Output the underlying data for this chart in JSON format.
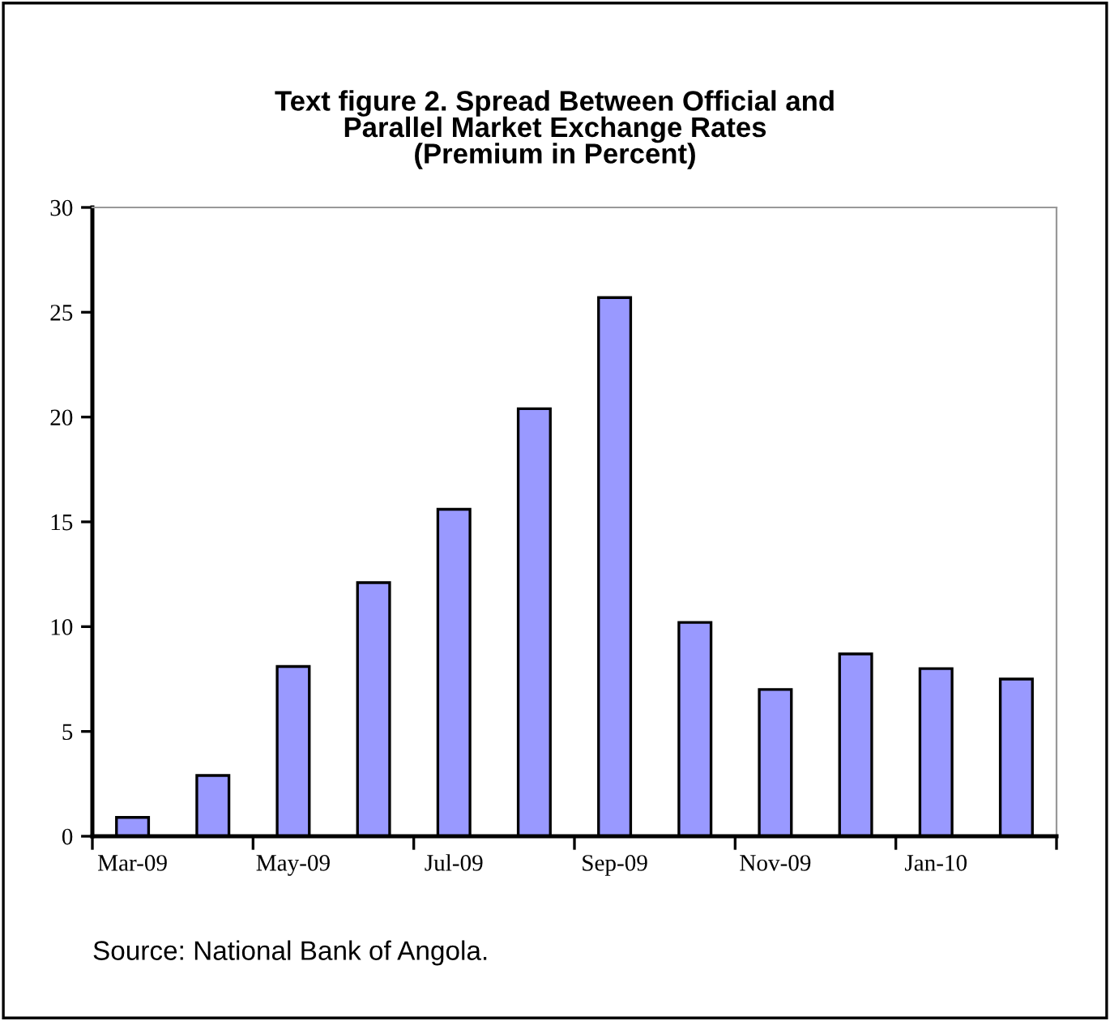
{
  "chart_data": {
    "type": "bar",
    "title": "Text figure 2. Spread Between Official and\nParallel Market Exchange Rates\n(Premium in Percent)",
    "categories": [
      "Mar-09",
      null,
      "May-09",
      null,
      "Jul-09",
      null,
      "Sep-09",
      null,
      "Nov-09",
      null,
      "Jan-10",
      null
    ],
    "values": [
      0.9,
      2.9,
      8.1,
      12.1,
      15.6,
      20.4,
      25.7,
      10.2,
      7.0,
      8.7,
      8.0,
      7.5
    ],
    "color": "#9999ff",
    "ylim": [
      0,
      30
    ],
    "yticks": [
      0,
      5,
      10,
      15,
      20,
      25,
      30
    ],
    "grid": false,
    "annotations": [
      "Source: National Bank of Angola."
    ]
  }
}
